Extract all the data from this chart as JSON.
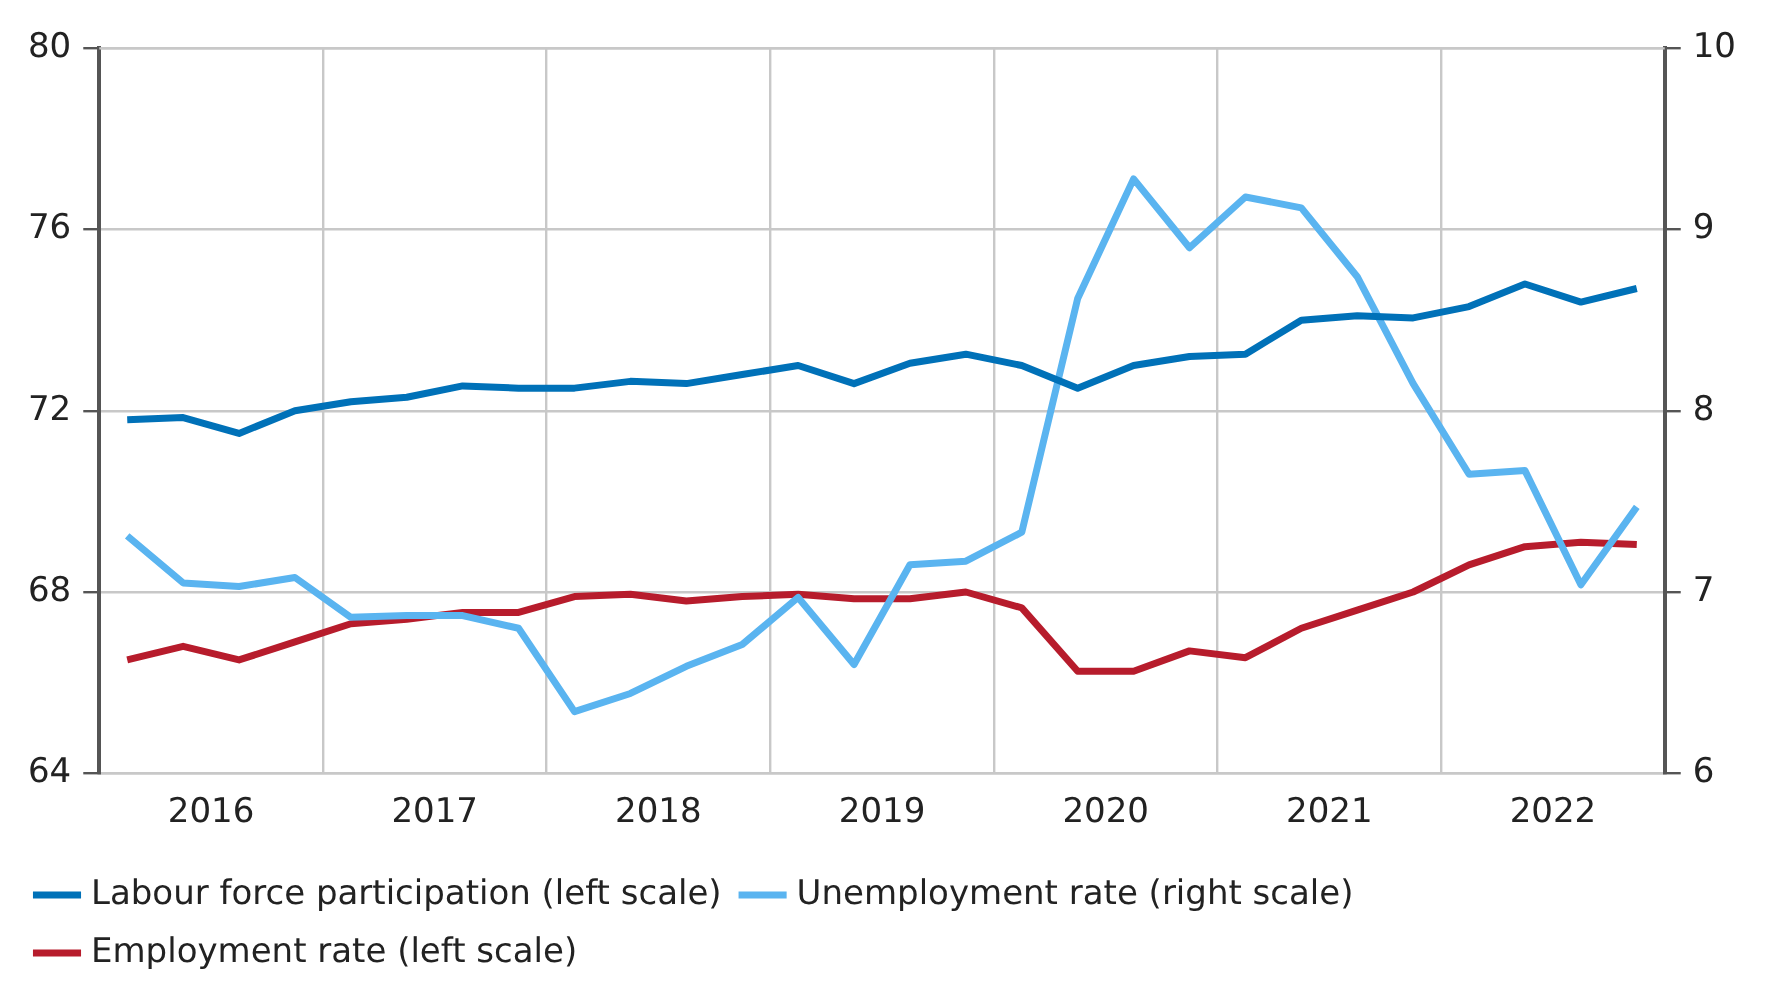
{
  "chart_data": {
    "type": "line",
    "x": [
      2016.125,
      2016.375,
      2016.625,
      2016.875,
      2017.125,
      2017.375,
      2017.625,
      2017.875,
      2018.125,
      2018.375,
      2018.625,
      2018.875,
      2019.125,
      2019.375,
      2019.625,
      2019.875,
      2020.125,
      2020.375,
      2020.625,
      2020.875,
      2021.125,
      2021.375,
      2021.625,
      2021.875,
      2022.125,
      2022.375,
      2022.625,
      2022.875
    ],
    "xlim": [
      2016,
      2023
    ],
    "xticks": [
      {
        "value": 2016,
        "label": null
      },
      {
        "value": 2016.5,
        "label": "2016"
      },
      {
        "value": 2017,
        "label": null
      },
      {
        "value": 2017.5,
        "label": "2017"
      },
      {
        "value": 2018,
        "label": null
      },
      {
        "value": 2018.5,
        "label": "2018"
      },
      {
        "value": 2019,
        "label": null
      },
      {
        "value": 2019.5,
        "label": "2019"
      },
      {
        "value": 2020,
        "label": null
      },
      {
        "value": 2020.5,
        "label": "2020"
      },
      {
        "value": 2021,
        "label": null
      },
      {
        "value": 2021.5,
        "label": "2021"
      },
      {
        "value": 2022,
        "label": null
      },
      {
        "value": 2022.5,
        "label": "2022"
      },
      {
        "value": 2023,
        "label": null
      }
    ],
    "ylim": [
      64,
      80
    ],
    "yticks": [
      64,
      68,
      72,
      76,
      80
    ],
    "y2lim": [
      6,
      10
    ],
    "y2ticks": [
      6,
      7,
      8,
      9,
      10
    ],
    "grid": true,
    "legend": "bottom",
    "marker": "none",
    "line_style": "solid",
    "series": [
      {
        "name": "Labour force participation (left scale)",
        "color": "#0071b8",
        "values": [
          71.8,
          71.85,
          71.5,
          72.0,
          72.2,
          72.3,
          72.55,
          72.5,
          72.5,
          72.65,
          72.6,
          72.8,
          73.0,
          72.6,
          73.05,
          73.25,
          73.0,
          72.5,
          73.0,
          73.2,
          73.25,
          74.0,
          74.1,
          74.05,
          74.3,
          74.8,
          74.4,
          74.7
        ]
      },
      {
        "name": "Unemployment rate (right scale)",
        "color": "#5ab4f0",
        "axis": "y2",
        "values": [
          7.31,
          7.05,
          7.03,
          7.08,
          6.86,
          6.87,
          6.87,
          6.8,
          6.34,
          6.44,
          6.59,
          6.71,
          6.97,
          6.6,
          7.15,
          7.17,
          7.33,
          8.62,
          9.28,
          8.9,
          9.18,
          9.12,
          8.74,
          8.15,
          7.65,
          7.67,
          7.04,
          7.47
        ]
      },
      {
        "name": "Employment rate (left scale)",
        "color": "#b71c2c",
        "values": [
          66.5,
          66.8,
          66.5,
          66.9,
          67.3,
          67.4,
          67.55,
          67.55,
          67.9,
          67.95,
          67.8,
          67.9,
          67.95,
          67.85,
          67.85,
          68.0,
          67.65,
          66.25,
          66.25,
          66.7,
          66.55,
          67.2,
          67.6,
          68.0,
          68.6,
          69.0,
          69.1,
          69.05
        ]
      }
    ]
  }
}
